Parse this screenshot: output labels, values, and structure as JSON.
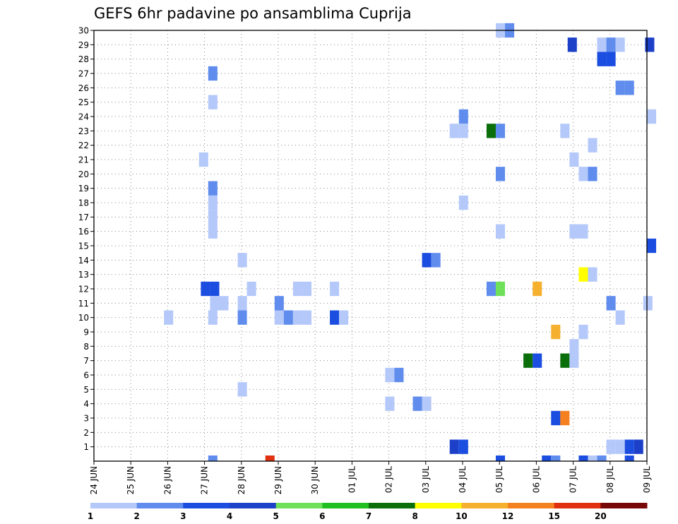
{
  "chart_data": {
    "type": "heatmap",
    "title": "GEFS 6hr padavine po ansamblima Cuprija",
    "xlabel": "",
    "ylabel": "",
    "grid": true,
    "x_tick_labels": [
      "24 JUN",
      "25 JUN",
      "26 JUN",
      "27 JUN",
      "28 JUN",
      "29 JUN",
      "30 JUN",
      "01 JUL",
      "02 JUL",
      "03 JUL",
      "04 JUL",
      "05 JUL",
      "06 JUL",
      "07 JUL",
      "08 JUL",
      "09 JUL"
    ],
    "x_range_days": [
      0,
      15
    ],
    "y_range": [
      0,
      30
    ],
    "y_tick_labels": [
      "1",
      "2",
      "3",
      "4",
      "5",
      "6",
      "7",
      "8",
      "9",
      "10",
      "11",
      "12",
      "13",
      "14",
      "15",
      "16",
      "17",
      "18",
      "19",
      "20",
      "21",
      "22",
      "23",
      "24",
      "25",
      "26",
      "27",
      "28",
      "29",
      "30"
    ],
    "colorbar": {
      "labels": [
        "1",
        "2",
        "3",
        "4",
        "5",
        "6",
        "7",
        "8",
        "10",
        "12",
        "15",
        "20"
      ],
      "colors": [
        "#b4c8fa",
        "#5f8ced",
        "#1a4de0",
        "#1d40c8",
        "#6ee05a",
        "#20c020",
        "#0a6e0a",
        "#ffff00",
        "#f5b030",
        "#f58020",
        "#e03010",
        "#780808"
      ]
    },
    "cells": [
      {
        "x": 10.9,
        "y": 30,
        "v": 1.5
      },
      {
        "x": 11.15,
        "y": 30,
        "v": 2.5
      },
      {
        "x": 12.85,
        "y": 29,
        "v": 4.5
      },
      {
        "x": 13.65,
        "y": 29,
        "v": 1.5
      },
      {
        "x": 13.9,
        "y": 29,
        "v": 2.5
      },
      {
        "x": 14.15,
        "y": 29,
        "v": 1.5
      },
      {
        "x": 14.95,
        "y": 29,
        "v": 4.5
      },
      {
        "x": 13.65,
        "y": 28,
        "v": 3.5
      },
      {
        "x": 13.9,
        "y": 28,
        "v": 3.5
      },
      {
        "x": 3.1,
        "y": 27,
        "v": 2.5
      },
      {
        "x": 14.15,
        "y": 26,
        "v": 2.5
      },
      {
        "x": 14.4,
        "y": 26,
        "v": 2.5
      },
      {
        "x": 3.1,
        "y": 25,
        "v": 1.5
      },
      {
        "x": 9.9,
        "y": 24,
        "v": 2.5
      },
      {
        "x": 15.0,
        "y": 24,
        "v": 1.5
      },
      {
        "x": 9.65,
        "y": 23,
        "v": 1.5
      },
      {
        "x": 9.9,
        "y": 23,
        "v": 1.5
      },
      {
        "x": 10.65,
        "y": 23,
        "v": 7.5
      },
      {
        "x": 10.9,
        "y": 23,
        "v": 2.5
      },
      {
        "x": 12.65,
        "y": 23,
        "v": 1.5
      },
      {
        "x": 13.4,
        "y": 22,
        "v": 1.5
      },
      {
        "x": 2.85,
        "y": 21,
        "v": 1.5
      },
      {
        "x": 12.9,
        "y": 21,
        "v": 1.5
      },
      {
        "x": 10.9,
        "y": 20,
        "v": 2.5
      },
      {
        "x": 13.15,
        "y": 20,
        "v": 1.5
      },
      {
        "x": 13.4,
        "y": 20,
        "v": 2.5
      },
      {
        "x": 3.1,
        "y": 19,
        "v": 2.5
      },
      {
        "x": 3.1,
        "y": 18,
        "v": 1.5
      },
      {
        "x": 9.9,
        "y": 18,
        "v": 1.5
      },
      {
        "x": 3.1,
        "y": 17,
        "v": 1.5
      },
      {
        "x": 3.1,
        "y": 16,
        "v": 1.5
      },
      {
        "x": 10.9,
        "y": 16,
        "v": 1.5
      },
      {
        "x": 12.9,
        "y": 16,
        "v": 1.5
      },
      {
        "x": 13.15,
        "y": 16,
        "v": 1.5
      },
      {
        "x": 15.0,
        "y": 15,
        "v": 3.5
      },
      {
        "x": 3.9,
        "y": 14,
        "v": 1.5
      },
      {
        "x": 8.9,
        "y": 14,
        "v": 3.5
      },
      {
        "x": 9.15,
        "y": 14,
        "v": 2.5
      },
      {
        "x": 13.15,
        "y": 13,
        "v": 8.5
      },
      {
        "x": 13.4,
        "y": 13,
        "v": 1.5
      },
      {
        "x": 2.9,
        "y": 12,
        "v": 3.5
      },
      {
        "x": 3.15,
        "y": 12,
        "v": 3.5
      },
      {
        "x": 4.15,
        "y": 12,
        "v": 1.5
      },
      {
        "x": 5.4,
        "y": 12,
        "v": 1.5
      },
      {
        "x": 5.65,
        "y": 12,
        "v": 1.5
      },
      {
        "x": 6.4,
        "y": 12,
        "v": 1.5
      },
      {
        "x": 10.65,
        "y": 12,
        "v": 2.5
      },
      {
        "x": 10.9,
        "y": 12,
        "v": 5.5
      },
      {
        "x": 11.9,
        "y": 12,
        "v": 11.0
      },
      {
        "x": 3.15,
        "y": 11,
        "v": 1.5
      },
      {
        "x": 3.4,
        "y": 11,
        "v": 1.5
      },
      {
        "x": 3.9,
        "y": 11,
        "v": 1.5
      },
      {
        "x": 4.9,
        "y": 11,
        "v": 2.5
      },
      {
        "x": 13.9,
        "y": 11,
        "v": 2.5
      },
      {
        "x": 14.9,
        "y": 11,
        "v": 1.5
      },
      {
        "x": 1.9,
        "y": 10,
        "v": 1.5
      },
      {
        "x": 3.1,
        "y": 10,
        "v": 1.5
      },
      {
        "x": 3.9,
        "y": 10,
        "v": 2.5
      },
      {
        "x": 4.9,
        "y": 10,
        "v": 1.5
      },
      {
        "x": 5.15,
        "y": 10,
        "v": 2.5
      },
      {
        "x": 5.4,
        "y": 10,
        "v": 1.5
      },
      {
        "x": 5.65,
        "y": 10,
        "v": 1.5
      },
      {
        "x": 6.4,
        "y": 10,
        "v": 3.5
      },
      {
        "x": 6.65,
        "y": 10,
        "v": 1.5
      },
      {
        "x": 14.15,
        "y": 10,
        "v": 1.5
      },
      {
        "x": 12.4,
        "y": 9,
        "v": 11.0
      },
      {
        "x": 13.15,
        "y": 9,
        "v": 1.5
      },
      {
        "x": 12.9,
        "y": 8,
        "v": 1.5
      },
      {
        "x": 11.65,
        "y": 7,
        "v": 7.5
      },
      {
        "x": 11.9,
        "y": 7,
        "v": 3.5
      },
      {
        "x": 12.65,
        "y": 7,
        "v": 7.5
      },
      {
        "x": 12.9,
        "y": 7,
        "v": 1.5
      },
      {
        "x": 7.9,
        "y": 6,
        "v": 1.5
      },
      {
        "x": 8.15,
        "y": 6,
        "v": 2.5
      },
      {
        "x": 3.9,
        "y": 5,
        "v": 1.5
      },
      {
        "x": 7.9,
        "y": 4,
        "v": 1.5
      },
      {
        "x": 8.65,
        "y": 4,
        "v": 2.5
      },
      {
        "x": 8.9,
        "y": 4,
        "v": 1.5
      },
      {
        "x": 12.4,
        "y": 3,
        "v": 3.5
      },
      {
        "x": 12.65,
        "y": 3,
        "v": 13.5
      },
      {
        "x": 9.65,
        "y": 1,
        "v": 4.5
      },
      {
        "x": 9.9,
        "y": 1,
        "v": 3.5
      },
      {
        "x": 13.9,
        "y": 1,
        "v": 1.5
      },
      {
        "x": 14.15,
        "y": 1,
        "v": 1.5
      },
      {
        "x": 14.4,
        "y": 1,
        "v": 3.5
      },
      {
        "x": 14.65,
        "y": 1,
        "v": 4.5
      },
      {
        "x": 3.1,
        "y": 0,
        "v": 2.5
      },
      {
        "x": 4.65,
        "y": 0,
        "v": 17.0
      },
      {
        "x": 10.9,
        "y": 0,
        "v": 3.5
      },
      {
        "x": 12.15,
        "y": 0,
        "v": 3.5
      },
      {
        "x": 12.4,
        "y": 0,
        "v": 2.5
      },
      {
        "x": 13.15,
        "y": 0,
        "v": 3.5
      },
      {
        "x": 13.4,
        "y": 0,
        "v": 1.5
      },
      {
        "x": 13.65,
        "y": 0,
        "v": 2.5
      },
      {
        "x": 14.4,
        "y": 0,
        "v": 3.5
      }
    ]
  }
}
